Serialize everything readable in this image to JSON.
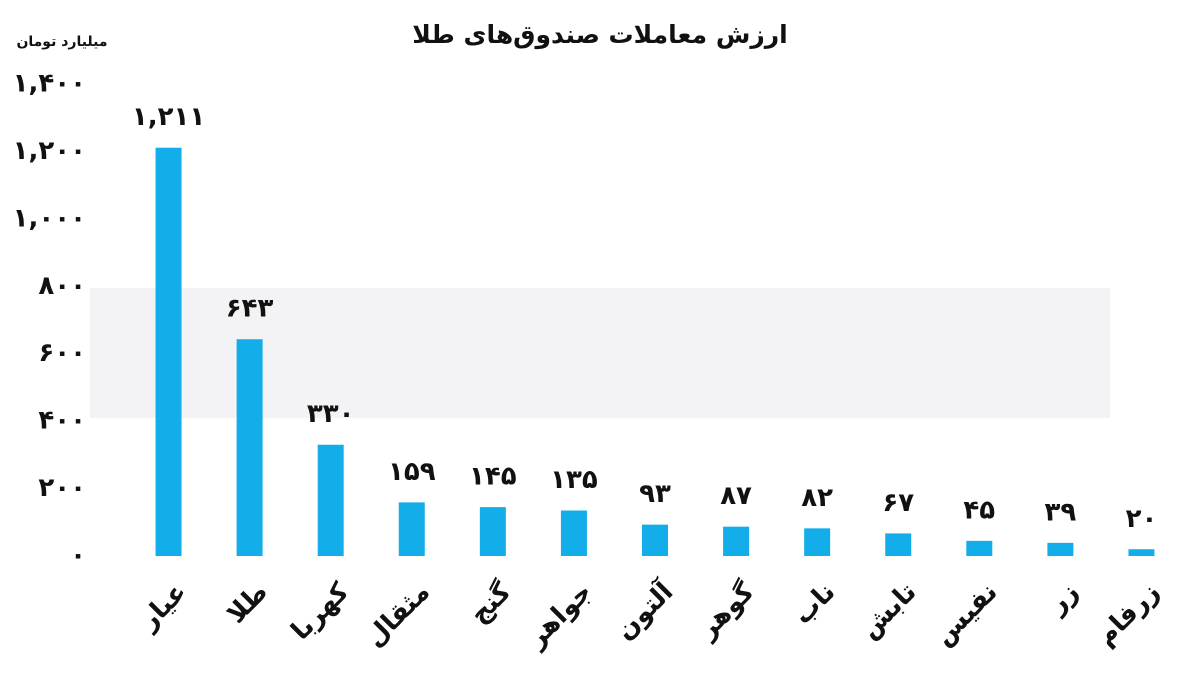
{
  "chart_data": {
    "type": "bar",
    "title": "ارزش معاملات صندوق‌های طلا",
    "y_label": "میلیارد تومان",
    "categories": [
      "عیار",
      "طلا",
      "کهربا",
      "مثقال",
      "گنج",
      "جواهر",
      "آلتون",
      "گوهر",
      "ناب",
      "تابش",
      "نفیس",
      "زر",
      "زرفام"
    ],
    "values": [
      1211,
      643,
      330,
      159,
      145,
      135,
      93,
      87,
      82,
      67,
      45,
      39,
      20
    ],
    "value_labels": [
      "۱,۲۱۱",
      "۶۴۳",
      "۳۳۰",
      "۱۵۹",
      "۱۴۵",
      "۱۳۵",
      "۹۳",
      "۸۷",
      "۸۲",
      "۶۷",
      "۴۵",
      "۳۹",
      "۲۰"
    ],
    "color": "#13aeea",
    "ylim": [
      0,
      1400
    ],
    "yticks": [
      {
        "value": 0,
        "label": "۰"
      },
      {
        "value": 200,
        "label": "۲۰۰"
      },
      {
        "value": 400,
        "label": "۴۰۰"
      },
      {
        "value": 600,
        "label": "۶۰۰"
      },
      {
        "value": 800,
        "label": "۸۰۰"
      },
      {
        "value": 1000,
        "label": "۱,۰۰۰"
      },
      {
        "value": 1200,
        "label": "۱,۲۰۰"
      },
      {
        "value": 1400,
        "label": "۱,۴۰۰"
      }
    ],
    "grid": false
  }
}
